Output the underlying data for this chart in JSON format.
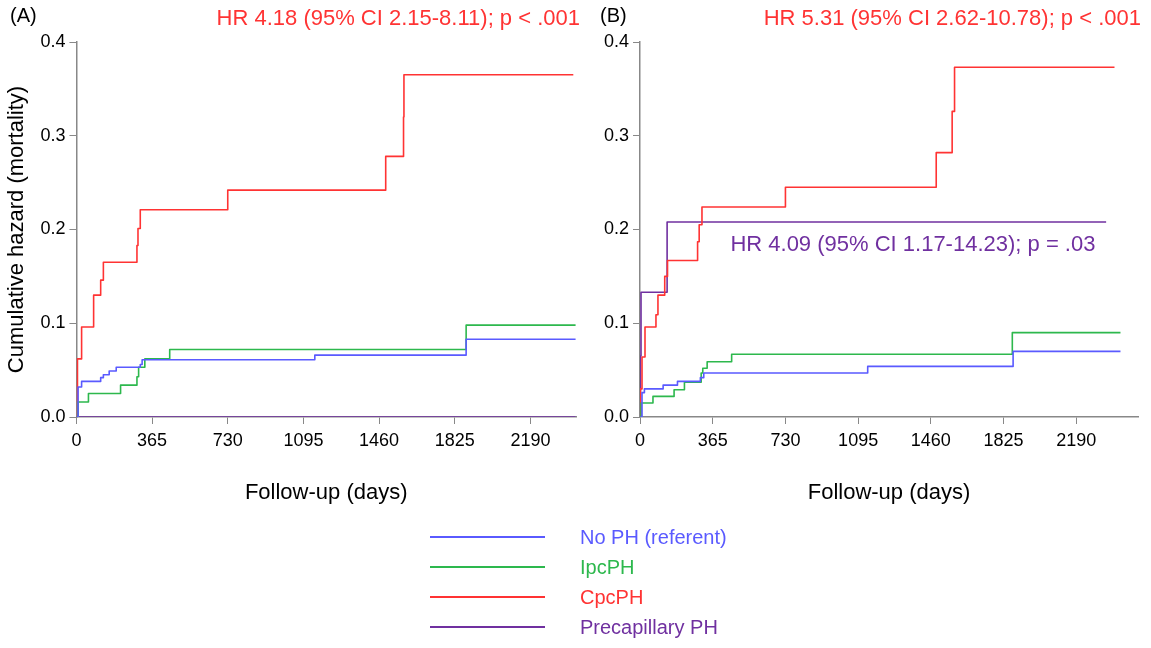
{
  "chart_data": [
    {
      "type": "step",
      "title": "(A)",
      "xlabel": "Follow-up (days)",
      "ylabel": "Cumulative hazard (mortality)",
      "annotations": [
        "HR 4.18 (95% CI 2.15-8.11); p < .001"
      ],
      "xlim": [
        0,
        2410
      ],
      "xticks": [
        0,
        365,
        730,
        1095,
        1460,
        1825,
        2190
      ],
      "ylim": [
        0,
        0.4
      ],
      "yticks": [
        {
          "value": 0,
          "label": "0.0"
        },
        0.1,
        0.2,
        0.3,
        0.4
      ],
      "grid": false,
      "legend": "bottom",
      "line_style": "solid",
      "marker": "none",
      "series": [
        {
          "name": "No PH (referent)",
          "color": "#5a5aff",
          "x": [
            0,
            8,
            25,
            117,
            130,
            158,
            192,
            308,
            317,
            1150,
            1880,
            2408
          ],
          "values": [
            0,
            0.032,
            0.038,
            0.042,
            0.045,
            0.049,
            0.053,
            0.056,
            0.061,
            0.066,
            0.083,
            0.083
          ]
        },
        {
          "name": "IpcPH",
          "color": "#2db84d",
          "x": [
            0,
            8,
            58,
            213,
            292,
            300,
            330,
            450,
            1880,
            2408
          ],
          "values": [
            0,
            0.016,
            0.025,
            0.034,
            0.043,
            0.053,
            0.062,
            0.072,
            0.098,
            0.098
          ]
        },
        {
          "name": "CpcPH",
          "color": "#ff3333",
          "x": [
            0,
            5,
            25,
            83,
            117,
            130,
            292,
            297,
            308,
            730,
            1492,
            1578,
            1580,
            2397
          ],
          "values": [
            0,
            0.062,
            0.096,
            0.13,
            0.146,
            0.165,
            0.183,
            0.201,
            0.221,
            0.242,
            0.278,
            0.32,
            0.365,
            0.365
          ]
        },
        {
          "name": "Precapillary PH",
          "color": "#7030a0",
          "x": [
            0,
            2408
          ],
          "values": [
            0,
            0
          ]
        }
      ]
    },
    {
      "type": "step",
      "title": "(B)",
      "xlabel": "Follow-up (days)",
      "annotations": [
        "HR 5.31 (95% CI 2.62-10.78); p < .001",
        {
          "text": "HR 4.09 (95% CI 1.17-14.23); p = .03",
          "x": 1370,
          "y": 0.208
        }
      ],
      "xlim": [
        0,
        2500
      ],
      "xticks": [
        0,
        365,
        730,
        1095,
        1460,
        1825,
        2190
      ],
      "ylim": [
        0,
        0.4
      ],
      "yticks": [
        {
          "value": 0,
          "label": "0.0"
        },
        0.1,
        0.2,
        0.3,
        0.4
      ],
      "grid": false,
      "line_style": "solid",
      "marker": "none",
      "series": [
        {
          "color": "#5a5aff",
          "x": [
            0,
            10,
            22,
            116,
            188,
            303,
            320,
            1143,
            1873,
            2412
          ],
          "values": [
            0,
            0.026,
            0.03,
            0.034,
            0.038,
            0.042,
            0.047,
            0.054,
            0.07,
            0.07
          ]
        },
        {
          "color": "#2db84d",
          "x": [
            0,
            5,
            65,
            171,
            223,
            307,
            315,
            337,
            460,
            1869,
            2412
          ],
          "values": [
            0,
            0.015,
            0.022,
            0.029,
            0.037,
            0.047,
            0.052,
            0.059,
            0.067,
            0.09,
            0.09
          ]
        },
        {
          "color": "#ff3333",
          "x": [
            0,
            2,
            10,
            25,
            80,
            90,
            124,
            138,
            289,
            297,
            311,
            730,
            1487,
            1567,
            1579,
            2382
          ],
          "values": [
            0,
            0.03,
            0.064,
            0.096,
            0.109,
            0.13,
            0.15,
            0.167,
            0.187,
            0.205,
            0.224,
            0.245,
            0.282,
            0.326,
            0.373,
            0.373
          ]
        },
        {
          "color": "#7030a0",
          "x": [
            0,
            2,
            5,
            136,
            2340
          ],
          "values": [
            0,
            0.065,
            0.133,
            0.208,
            0.208
          ]
        }
      ]
    }
  ]
}
